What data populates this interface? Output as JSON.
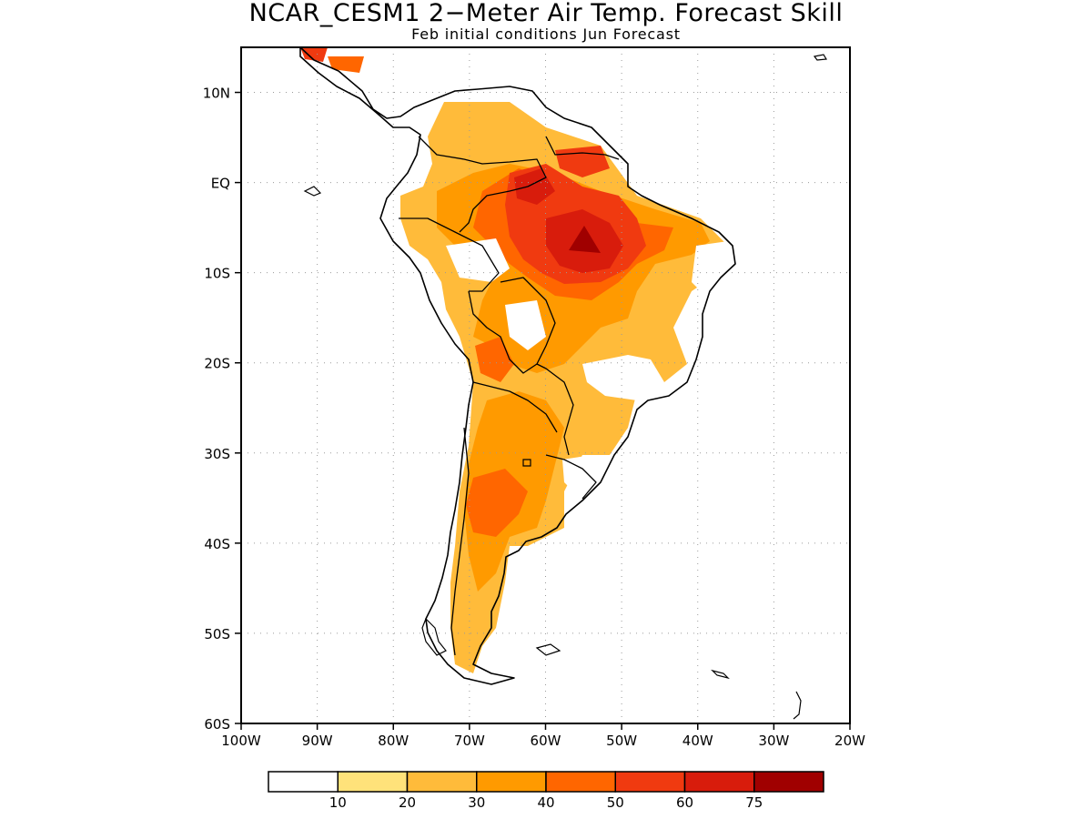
{
  "title": "NCAR_CESM1 2−Meter Air Temp. Forecast Skill",
  "subtitle": "Feb initial conditions  Jun Forecast",
  "lat_labels": [
    "10N",
    "EQ",
    "10S",
    "20S",
    "30S",
    "40S",
    "50S",
    "60S"
  ],
  "lon_labels": [
    "100W",
    "90W",
    "80W",
    "70W",
    "60W",
    "50W",
    "40W",
    "30W",
    "20W"
  ],
  "colorbar": {
    "labels": [
      "10",
      "20",
      "30",
      "40",
      "50",
      "60",
      "75"
    ],
    "colors": [
      "#ffffff",
      "#ffe27a",
      "#ffbb3a",
      "#ff9a00",
      "#ff6600",
      "#f03a10",
      "#d81c0c",
      "#a00000"
    ]
  },
  "map": {
    "lat_range": [
      -60,
      15
    ],
    "lon_range": [
      -100,
      -20
    ],
    "grid": "dotted"
  }
}
